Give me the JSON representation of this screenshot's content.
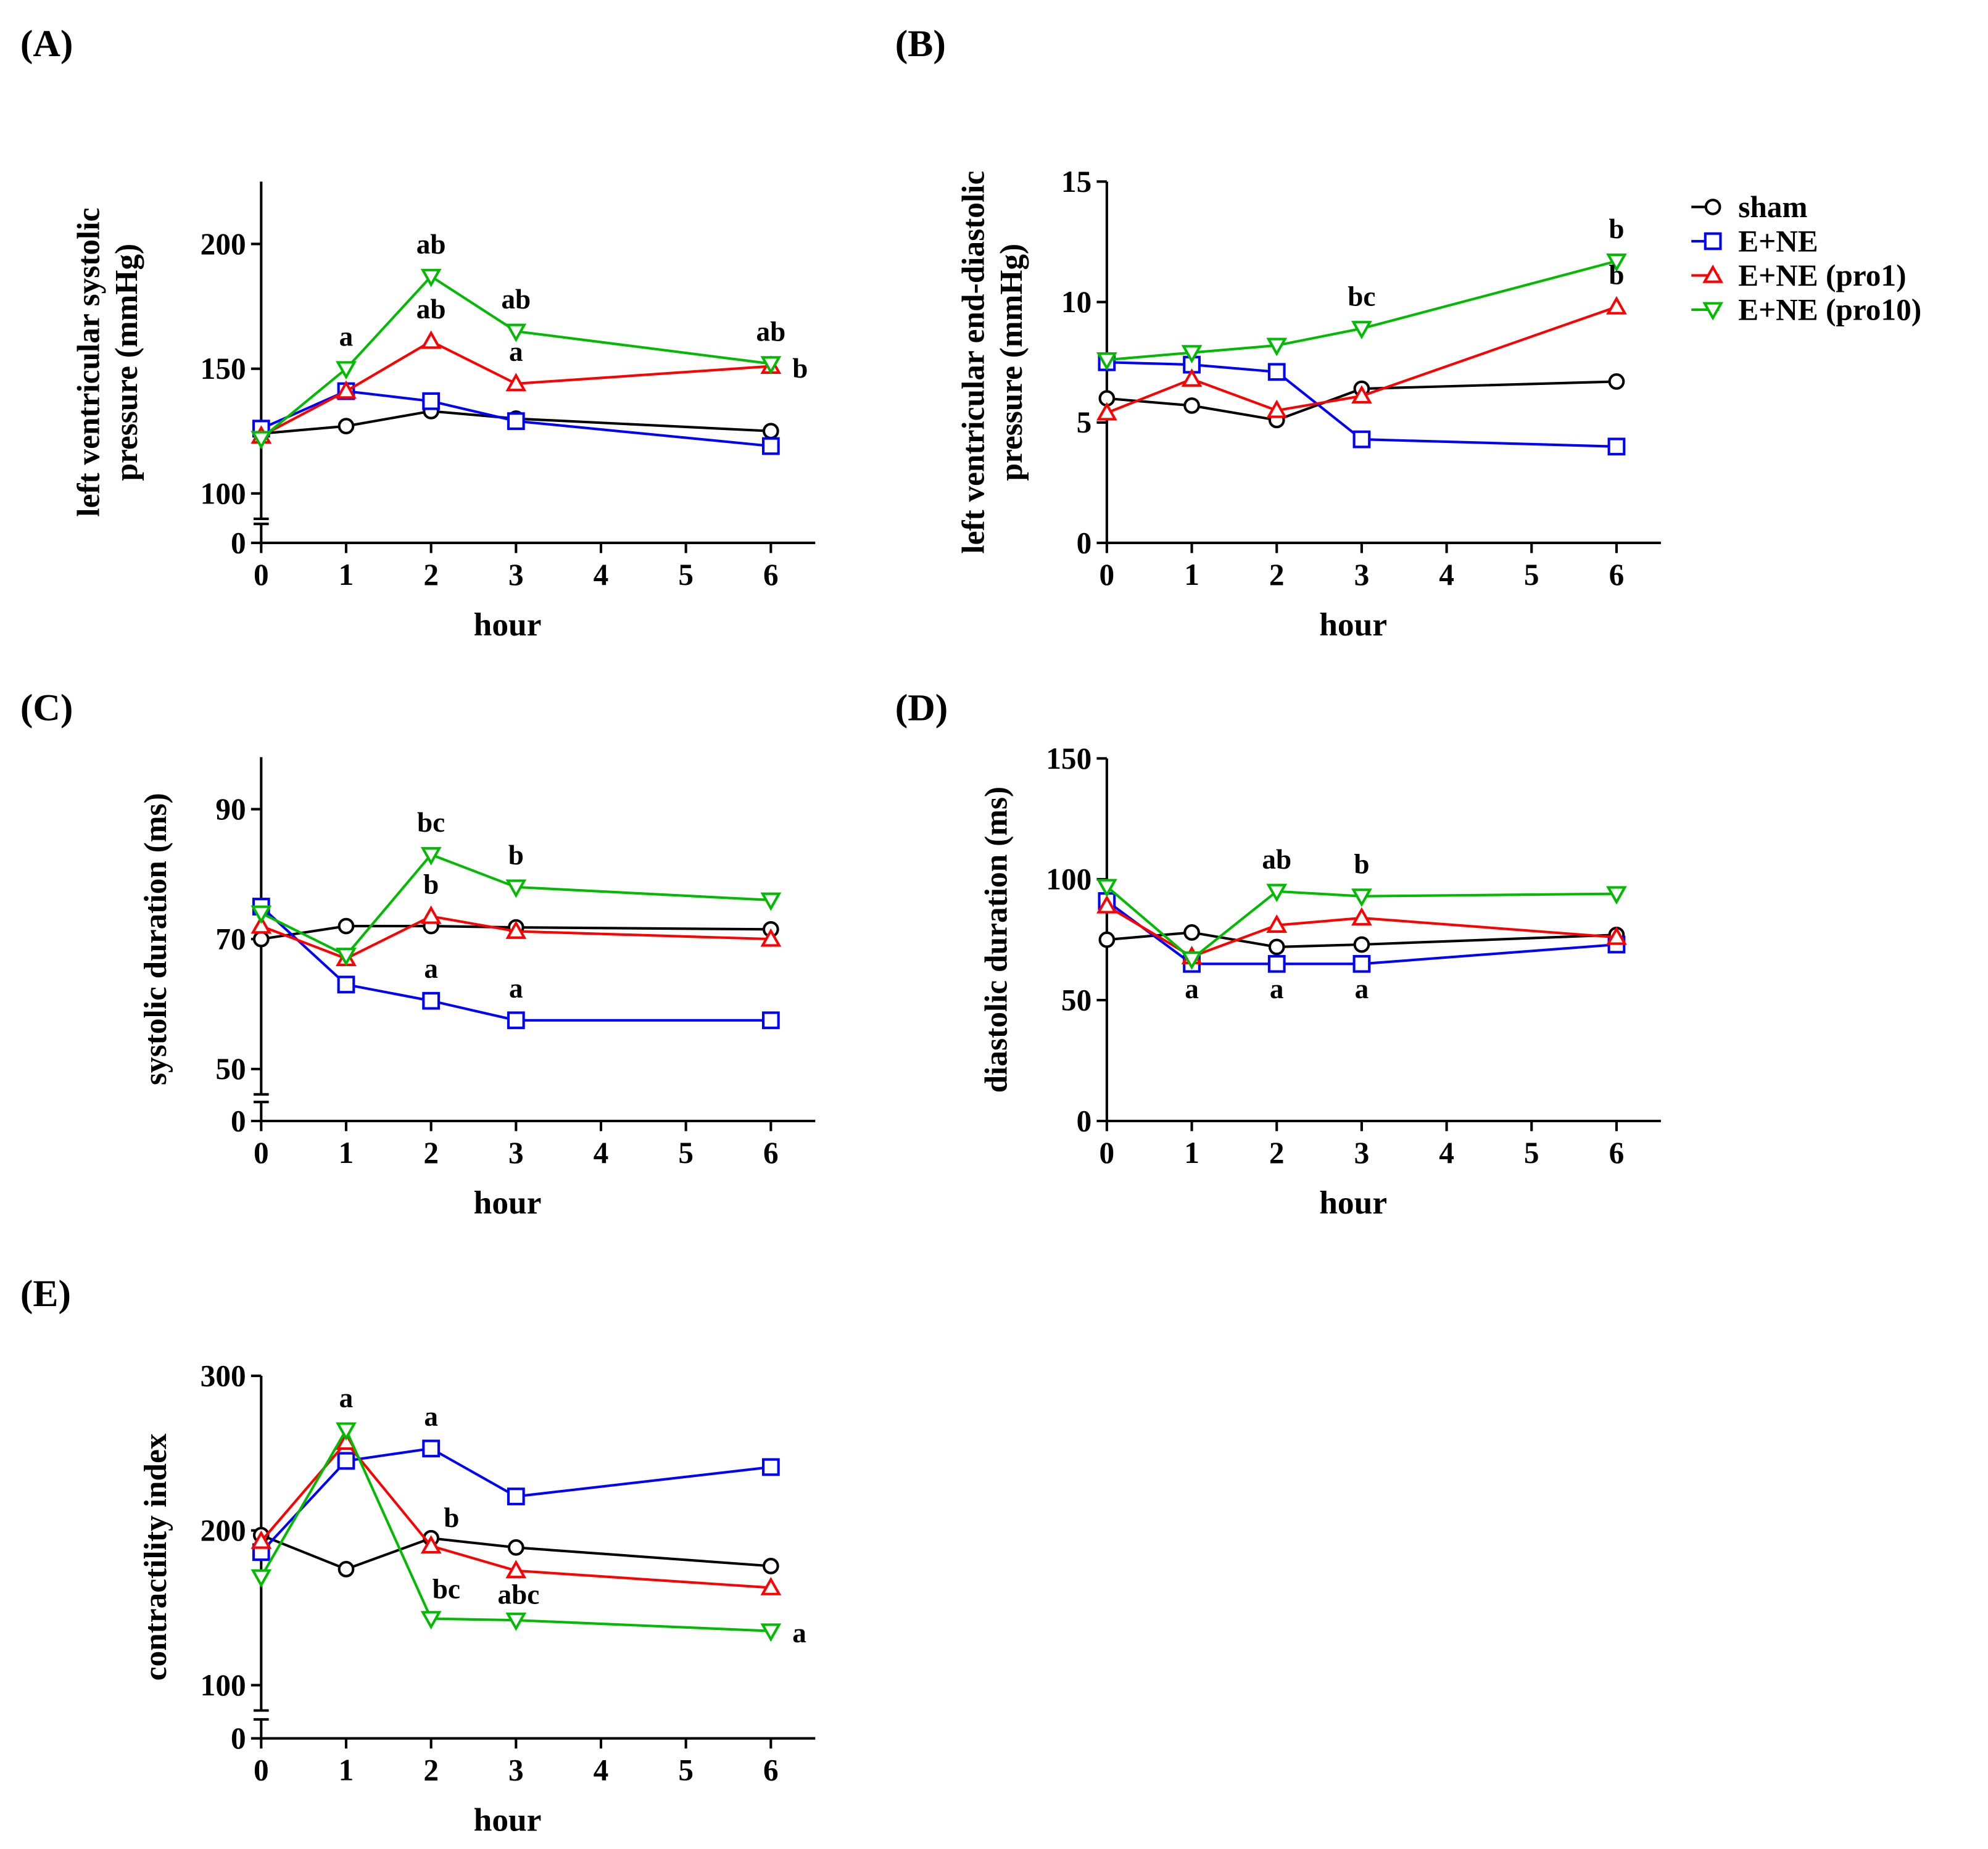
{
  "colors": {
    "sham": "#000000",
    "E+NE": "#0000ff",
    "E+NE (pro1)": "#ff0000",
    "E+NE (pro10)": "#00bb00",
    "axis": "#000000"
  },
  "legend": [
    {
      "name": "sham",
      "label": "sham",
      "marker": "circle"
    },
    {
      "name": "E+NE",
      "label": "E+NE",
      "marker": "square"
    },
    {
      "name": "E+NE (pro1)",
      "label": "E+NE (pro1)",
      "marker": "triangle-up"
    },
    {
      "name": "E+NE (pro10)",
      "label": "E+NE (pro10)",
      "marker": "triangle-down"
    }
  ],
  "chart_data": [
    {
      "panel": "(A)",
      "type": "line",
      "xlabel": "hour",
      "ylabel": [
        "left ventricular systolic",
        "pressure (mmHg)"
      ],
      "x": [
        0,
        1,
        2,
        3,
        6
      ],
      "xticks": [
        0,
        1,
        2,
        3,
        4,
        5,
        6
      ],
      "ylim": [
        100,
        225
      ],
      "yticks": [
        100,
        150,
        200
      ],
      "axis_break": true,
      "series": [
        {
          "name": "sham",
          "values": [
            124,
            127,
            133,
            130,
            125
          ]
        },
        {
          "name": "E+NE",
          "values": [
            126,
            141,
            137,
            129,
            119
          ]
        },
        {
          "name": "E+NE (pro1)",
          "values": [
            123,
            141,
            161,
            144,
            151
          ]
        },
        {
          "name": "E+NE (pro10)",
          "values": [
            122,
            150,
            187,
            165,
            152
          ]
        }
      ],
      "annotations": [
        {
          "series": "E+NE (pro10)",
          "x": 1,
          "text": "a"
        },
        {
          "series": "E+NE (pro10)",
          "x": 2,
          "text": "ab"
        },
        {
          "series": "E+NE (pro1)",
          "x": 2,
          "text": "ab"
        },
        {
          "series": "E+NE (pro10)",
          "x": 3,
          "text": "ab"
        },
        {
          "series": "E+NE (pro1)",
          "x": 3,
          "text": "a"
        },
        {
          "series": "E+NE (pro10)",
          "x": 6,
          "text": "ab"
        },
        {
          "series": "E+NE (pro1)",
          "x": 6,
          "text": "b",
          "side": "right"
        }
      ]
    },
    {
      "panel": "(B)",
      "type": "line",
      "xlabel": "hour",
      "ylabel": [
        "left ventricular end-diastolic",
        "pressure (mmHg)"
      ],
      "x": [
        0,
        1,
        2,
        3,
        6
      ],
      "xticks": [
        0,
        1,
        2,
        3,
        4,
        5,
        6
      ],
      "ylim": [
        0,
        15
      ],
      "yticks": [
        0,
        5,
        10,
        15
      ],
      "axis_break": false,
      "series": [
        {
          "name": "sham",
          "values": [
            6.0,
            5.7,
            5.1,
            6.4,
            6.7
          ]
        },
        {
          "name": "E+NE",
          "values": [
            7.5,
            7.4,
            7.1,
            4.3,
            4.0
          ]
        },
        {
          "name": "E+NE (pro1)",
          "values": [
            5.4,
            6.8,
            5.5,
            6.1,
            9.8
          ]
        },
        {
          "name": "E+NE (pro10)",
          "values": [
            7.6,
            7.9,
            8.2,
            8.9,
            11.7
          ]
        }
      ],
      "annotations": [
        {
          "series": "E+NE (pro10)",
          "x": 3,
          "text": "bc"
        },
        {
          "series": "E+NE (pro10)",
          "x": 6,
          "text": "b"
        },
        {
          "series": "E+NE (pro1)",
          "x": 6,
          "text": "b"
        }
      ]
    },
    {
      "panel": "(C)",
      "type": "line",
      "xlabel": "hour",
      "ylabel": [
        "systolic duration (ms)"
      ],
      "x": [
        0,
        1,
        2,
        3,
        6
      ],
      "xticks": [
        0,
        1,
        2,
        3,
        4,
        5,
        6
      ],
      "ylim": [
        50,
        98
      ],
      "yticks": [
        50,
        70,
        90
      ],
      "axis_break": true,
      "series": [
        {
          "name": "sham",
          "values": [
            70,
            72,
            72,
            71.8,
            71.5
          ]
        },
        {
          "name": "E+NE",
          "values": [
            75,
            63,
            60.5,
            57.5,
            57.5
          ]
        },
        {
          "name": "E+NE (pro1)",
          "values": [
            72,
            67,
            73.5,
            71.2,
            70
          ]
        },
        {
          "name": "E+NE (pro10)",
          "values": [
            74,
            67.5,
            83,
            78,
            76
          ]
        }
      ],
      "annotations": [
        {
          "series": "E+NE (pro10)",
          "x": 2,
          "text": "bc"
        },
        {
          "series": "E+NE (pro1)",
          "x": 2,
          "text": "b"
        },
        {
          "series": "E+NE",
          "x": 2,
          "text": "a"
        },
        {
          "series": "E+NE (pro10)",
          "x": 3,
          "text": "b"
        },
        {
          "series": "E+NE",
          "x": 3,
          "text": "a"
        }
      ]
    },
    {
      "panel": "(D)",
      "type": "line",
      "xlabel": "hour",
      "ylabel": [
        "diastolic duration (ms)"
      ],
      "x": [
        0,
        1,
        2,
        3,
        6
      ],
      "xticks": [
        0,
        1,
        2,
        3,
        4,
        5,
        6
      ],
      "ylim": [
        0,
        150
      ],
      "yticks": [
        0,
        50,
        100,
        150
      ],
      "axis_break": false,
      "series": [
        {
          "name": "sham",
          "values": [
            75,
            78,
            72,
            73,
            77
          ]
        },
        {
          "name": "E+NE",
          "values": [
            91,
            65,
            65,
            65,
            73
          ]
        },
        {
          "name": "E+NE (pro1)",
          "values": [
            89,
            68,
            81,
            84,
            76
          ]
        },
        {
          "name": "E+NE (pro10)",
          "values": [
            97,
            67,
            95,
            93,
            94
          ]
        }
      ],
      "annotations": [
        {
          "series": "E+NE",
          "x": 1,
          "text": "a",
          "below": true
        },
        {
          "series": "E+NE",
          "x": 2,
          "text": "a",
          "below": true
        },
        {
          "series": "E+NE",
          "x": 3,
          "text": "a",
          "below": true
        },
        {
          "series": "E+NE (pro10)",
          "x": 2,
          "text": "ab"
        },
        {
          "series": "E+NE (pro10)",
          "x": 3,
          "text": "b"
        }
      ]
    },
    {
      "panel": "(E)",
      "type": "line",
      "xlabel": "hour",
      "ylabel": [
        "contractility index"
      ],
      "x": [
        0,
        1,
        2,
        3,
        6
      ],
      "xticks": [
        0,
        1,
        2,
        3,
        4,
        5,
        6
      ],
      "ylim": [
        100,
        300
      ],
      "yticks": [
        100,
        200,
        300
      ],
      "axis_break": true,
      "series": [
        {
          "name": "sham",
          "values": [
            197,
            175,
            195,
            189,
            177
          ]
        },
        {
          "name": "E+NE",
          "values": [
            186,
            245,
            253,
            222,
            241
          ]
        },
        {
          "name": "E+NE (pro1)",
          "values": [
            193,
            257,
            190,
            174,
            163
          ]
        },
        {
          "name": "E+NE (pro10)",
          "values": [
            170,
            265,
            143,
            142,
            135
          ]
        }
      ],
      "annotations": [
        {
          "series": "E+NE (pro10)",
          "x": 1,
          "text": "a"
        },
        {
          "series": "E+NE",
          "x": 2,
          "text": "a"
        },
        {
          "series": "sham",
          "x": 2,
          "text": "b",
          "side": "right-up"
        },
        {
          "series": "E+NE (pro10)",
          "x": 2,
          "text": "bc",
          "side": "right-up2"
        },
        {
          "series": "E+NE (pro10)",
          "x": 3,
          "text": "abc",
          "side": "up2"
        },
        {
          "series": "E+NE (pro10)",
          "x": 6,
          "text": "a",
          "side": "right"
        }
      ]
    }
  ]
}
